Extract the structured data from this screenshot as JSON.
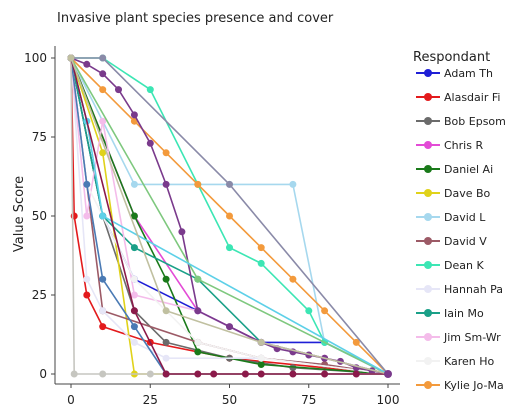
{
  "chart_data": {
    "type": "line",
    "title": "Invasive plant species presence and cover",
    "xlabel": "",
    "ylabel": "Value Score",
    "xlim": [
      0,
      100
    ],
    "ylim": [
      0,
      100
    ],
    "x_ticks": [
      0,
      25,
      50,
      75,
      100
    ],
    "y_ticks": [
      0,
      25,
      50,
      75,
      100
    ],
    "grid": false,
    "legend_title": "Respondant",
    "legend_position": "right",
    "series": [
      {
        "name": "Adam Th",
        "color": "#1f1fd6",
        "points": [
          [
            0,
            100
          ],
          [
            10,
            50
          ],
          [
            20,
            30
          ],
          [
            40,
            20
          ],
          [
            60,
            10
          ],
          [
            80,
            10
          ]
        ],
        "endpoint": [
          100,
          0
        ]
      },
      {
        "name": "Alasdair Fi",
        "color": "#e31a1c",
        "points": [
          [
            0,
            100
          ],
          [
            1,
            50
          ],
          [
            5,
            25
          ],
          [
            10,
            15
          ],
          [
            25,
            10
          ],
          [
            50,
            5
          ]
        ],
        "endpoint": [
          100,
          0
        ]
      },
      {
        "name": "Bob Epsom",
        "color": "#6b6b6b",
        "points": [
          [
            0,
            100
          ],
          [
            10,
            50
          ],
          [
            20,
            20
          ],
          [
            30,
            10
          ],
          [
            50,
            5
          ],
          [
            70,
            2
          ]
        ],
        "endpoint": [
          100,
          0
        ]
      },
      {
        "name": "Chris R",
        "color": "#e34bd6",
        "points": [
          [
            0,
            100
          ],
          [
            20,
            50
          ],
          [
            40,
            20
          ],
          [
            60,
            10
          ],
          [
            80,
            5
          ]
        ],
        "endpoint": [
          100,
          0
        ]
      },
      {
        "name": "Daniel Ai",
        "color": "#1a7a1a",
        "points": [
          [
            0,
            100
          ],
          [
            20,
            50
          ],
          [
            30,
            30
          ],
          [
            40,
            7
          ],
          [
            60,
            3
          ]
        ],
        "endpoint": [
          100,
          0
        ]
      },
      {
        "name": "Dave Bo",
        "color": "#e0d21a",
        "points": [
          [
            0,
            100
          ],
          [
            10,
            70
          ],
          [
            20,
            0
          ]
        ],
        "endpoint": [
          100,
          0
        ]
      },
      {
        "name": "David L",
        "color": "#a6d8ee",
        "points": [
          [
            0,
            100
          ],
          [
            20,
            60
          ],
          [
            50,
            60
          ],
          [
            70,
            60
          ],
          [
            80,
            10
          ]
        ],
        "endpoint": [
          100,
          0
        ]
      },
      {
        "name": "David V",
        "color": "#9c5a66",
        "points": [
          [
            0,
            100
          ],
          [
            10,
            20
          ],
          [
            40,
            10
          ],
          [
            60,
            5
          ],
          [
            80,
            3
          ]
        ],
        "endpoint": [
          100,
          0
        ]
      },
      {
        "name": "Dean K",
        "color": "#3ce6b4",
        "points": [
          [
            0,
            100
          ],
          [
            10,
            100
          ],
          [
            25,
            90
          ],
          [
            40,
            60
          ],
          [
            50,
            40
          ],
          [
            60,
            35
          ],
          [
            75,
            20
          ],
          [
            80,
            10
          ]
        ],
        "endpoint": [
          100,
          0
        ]
      },
      {
        "name": "Hannah Pa",
        "color": "#e6e6f7",
        "points": [
          [
            0,
            100
          ],
          [
            5,
            30
          ],
          [
            10,
            20
          ],
          [
            20,
            10
          ],
          [
            30,
            5
          ],
          [
            60,
            5
          ]
        ],
        "endpoint": [
          100,
          0
        ]
      },
      {
        "name": "Iain Mo",
        "color": "#1aa088",
        "points": [
          [
            0,
            100
          ],
          [
            10,
            50
          ],
          [
            20,
            40
          ],
          [
            40,
            30
          ],
          [
            60,
            10
          ]
        ],
        "endpoint": [
          100,
          0
        ]
      },
      {
        "name": "Jim Sm-Wr",
        "color": "#f4bcea",
        "points": [
          [
            0,
            100
          ],
          [
            5,
            50
          ],
          [
            10,
            80
          ],
          [
            20,
            25
          ],
          [
            40,
            20
          ],
          [
            60,
            10
          ]
        ],
        "endpoint": [
          100,
          0
        ]
      },
      {
        "name": "Karen Ho",
        "color": "#f2f2f2",
        "points": [
          [
            0,
            100
          ],
          [
            5,
            60
          ],
          [
            20,
            30
          ],
          [
            40,
            10
          ],
          [
            60,
            5
          ]
        ],
        "endpoint": [
          100,
          0
        ]
      },
      {
        "name": "Kylie Jo-Ma",
        "color": "#f39a3c",
        "points": [
          [
            0,
            100
          ],
          [
            10,
            90
          ],
          [
            20,
            80
          ],
          [
            30,
            70
          ],
          [
            40,
            60
          ],
          [
            50,
            50
          ],
          [
            60,
            40
          ],
          [
            70,
            30
          ],
          [
            80,
            20
          ],
          [
            90,
            10
          ]
        ],
        "endpoint": [
          100,
          0
        ]
      },
      {
        "name": "",
        "color": "#7a3a8c",
        "points": [
          [
            0,
            100
          ],
          [
            5,
            98
          ],
          [
            10,
            95
          ],
          [
            15,
            90
          ],
          [
            20,
            82
          ],
          [
            25,
            73
          ],
          [
            30,
            60
          ],
          [
            35,
            45
          ],
          [
            40,
            20
          ],
          [
            50,
            15
          ],
          [
            60,
            10
          ],
          [
            65,
            8
          ],
          [
            70,
            7
          ],
          [
            75,
            6
          ],
          [
            80,
            5
          ],
          [
            85,
            4
          ],
          [
            90,
            2
          ],
          [
            95,
            1
          ]
        ],
        "endpoint": [
          100,
          0
        ]
      },
      {
        "name": "",
        "color": "#4a7ab4",
        "points": [
          [
            0,
            100
          ],
          [
            5,
            60
          ],
          [
            10,
            30
          ],
          [
            20,
            15
          ],
          [
            30,
            0
          ]
        ],
        "endpoint": [
          100,
          0
        ]
      },
      {
        "name": "",
        "color": "#8a8aa8",
        "points": [
          [
            0,
            100
          ],
          [
            10,
            100
          ],
          [
            50,
            60
          ]
        ],
        "endpoint": [
          100,
          0
        ]
      },
      {
        "name": "",
        "color": "#c6c6c0",
        "points": [
          [
            0,
            100
          ],
          [
            1,
            0
          ],
          [
            10,
            0
          ],
          [
            25,
            0
          ]
        ],
        "endpoint": [
          100,
          0
        ]
      },
      {
        "name": "",
        "color": "#7ec87e",
        "points": [
          [
            0,
            100
          ],
          [
            40,
            30
          ]
        ],
        "endpoint": [
          100,
          0
        ]
      },
      {
        "name": "",
        "color": "#5dd0e8",
        "points": [
          [
            0,
            100
          ],
          [
            5,
            80
          ],
          [
            10,
            50
          ]
        ],
        "endpoint": [
          100,
          0
        ]
      },
      {
        "name": "",
        "color": "#8b1a4a",
        "points": [
          [
            0,
            100
          ],
          [
            20,
            20
          ],
          [
            30,
            0
          ],
          [
            40,
            0
          ],
          [
            45,
            0
          ],
          [
            55,
            0
          ],
          [
            60,
            0
          ],
          [
            70,
            0
          ],
          [
            80,
            0
          ],
          [
            90,
            0
          ]
        ],
        "endpoint": [
          100,
          0
        ]
      },
      {
        "name": "",
        "color": "#c0c0a0",
        "points": [
          [
            0,
            100
          ],
          [
            30,
            20
          ],
          [
            60,
            10
          ]
        ],
        "endpoint": [
          100,
          0
        ]
      }
    ]
  }
}
